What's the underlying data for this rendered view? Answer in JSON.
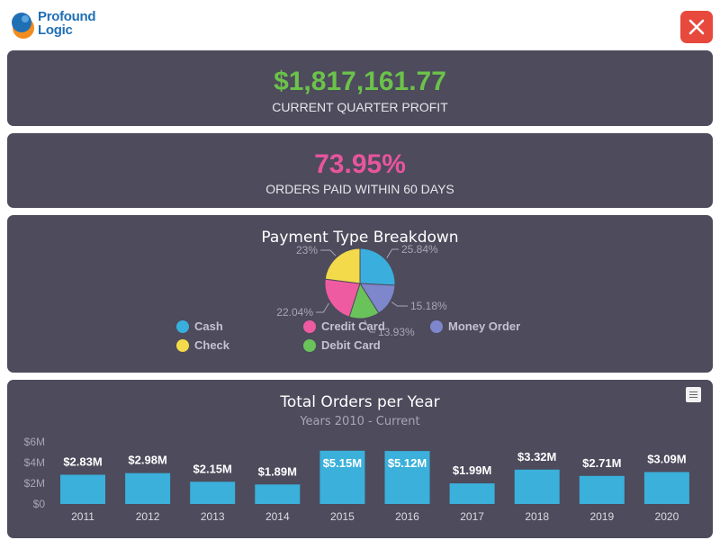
{
  "brand": {
    "line1": "Profound",
    "line2": "Logic"
  },
  "kpis": [
    {
      "value": "$1,817,161.77",
      "label": "CURRENT QUARTER PROFIT",
      "color": "#6cc24a"
    },
    {
      "value": "73.95%",
      "label": "ORDERS PAID WITHIN 60 DAYS",
      "color": "#e8559d"
    }
  ],
  "pie": {
    "title": "Payment Type Breakdown",
    "legend": [
      {
        "label": "Cash",
        "color": "#3aaedd"
      },
      {
        "label": "Credit Card",
        "color": "#ef5ba1"
      },
      {
        "label": "Money Order",
        "color": "#7e86cc"
      },
      {
        "label": "Check",
        "color": "#f2da4a"
      },
      {
        "label": "Debit Card",
        "color": "#69c35a"
      }
    ]
  },
  "bars": {
    "title": "Total Orders per Year",
    "subtitle": "Years 2010 - Current",
    "y_ticks": [
      "$0",
      "$2M",
      "$4M",
      "$6M"
    ],
    "color": "#3ab0db"
  },
  "chart_data": [
    {
      "type": "pie",
      "title": "Payment Type Breakdown",
      "slices": [
        {
          "name": "Cash",
          "label": "25.84%",
          "value": 25.84,
          "color": "#3aaedd"
        },
        {
          "name": "Money Order",
          "label": "15.18%",
          "value": 15.18,
          "color": "#7e86cc"
        },
        {
          "name": "Debit Card",
          "label": "13.93%",
          "value": 13.93,
          "color": "#69c35a"
        },
        {
          "name": "Credit Card",
          "label": "22.04%",
          "value": 22.04,
          "color": "#ef5ba1"
        },
        {
          "name": "Check",
          "label": "23%",
          "value": 23,
          "color": "#f2da4a"
        }
      ]
    },
    {
      "type": "bar",
      "title": "Total Orders per Year",
      "subtitle": "Years 2010 - Current",
      "categories": [
        "2011",
        "2012",
        "2013",
        "2014",
        "2015",
        "2016",
        "2017",
        "2018",
        "2019",
        "2020"
      ],
      "values": [
        2.83,
        2.98,
        2.15,
        1.89,
        5.15,
        5.12,
        1.99,
        3.32,
        2.71,
        3.09
      ],
      "labels": [
        "$2.83M",
        "$2.98M",
        "$2.15M",
        "$1.89M",
        "$5.15M",
        "$5.12M",
        "$1.99M",
        "$3.32M",
        "$2.71M",
        "$3.09M"
      ],
      "ylim": [
        0,
        6
      ],
      "color": "#3ab0db"
    }
  ]
}
